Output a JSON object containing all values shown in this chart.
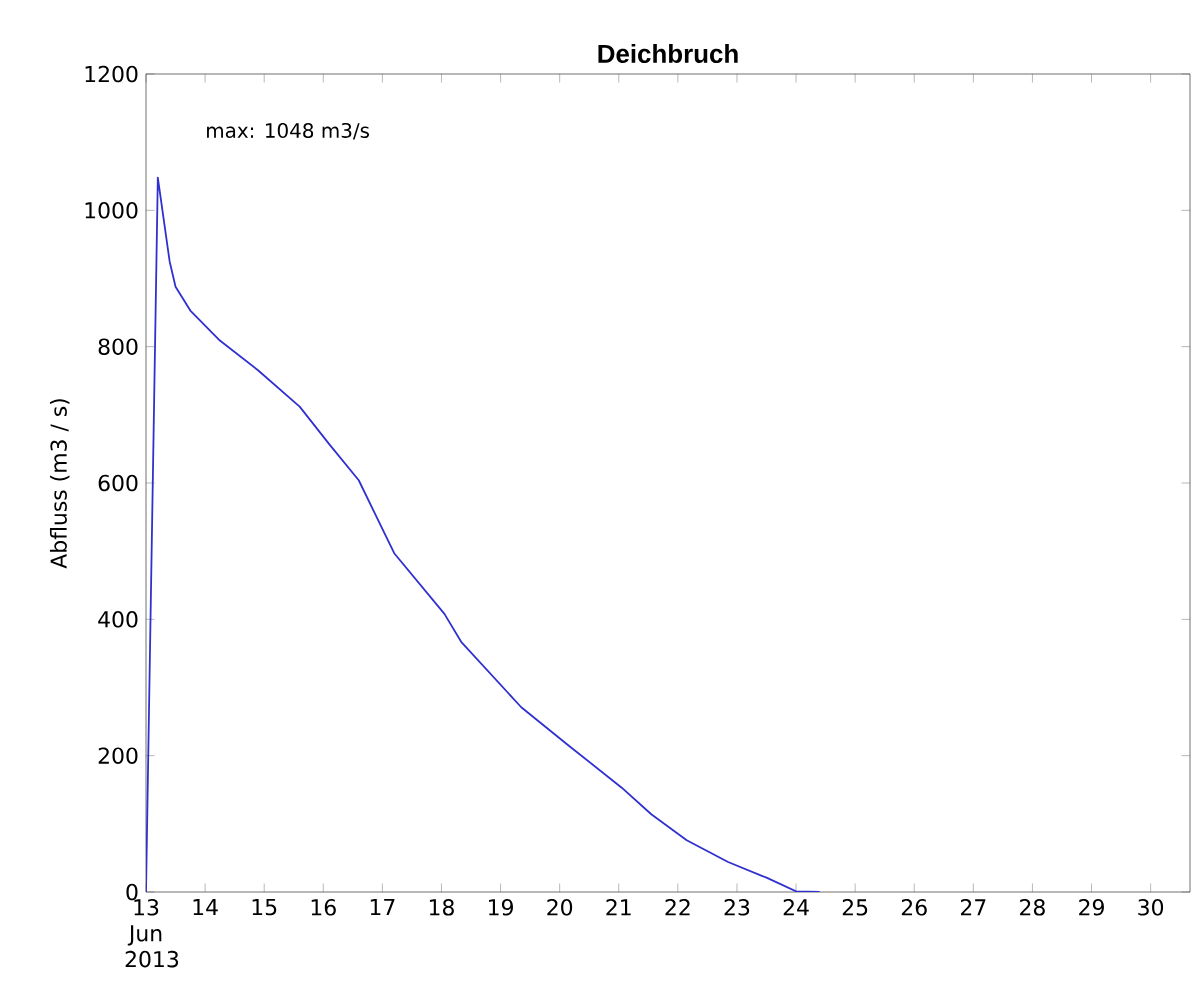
{
  "chart_data": {
    "type": "line",
    "title": "Deichbruch",
    "ylabel": "Abfluss (m3 / s)",
    "annotations": [
      "max: 1048 m3/s"
    ],
    "x": [
      "2013-06-13T00:00",
      "2013-06-13T04:48",
      "2013-06-13T09:36",
      "2013-06-13T12:00",
      "2013-06-13T18:00",
      "2013-06-14T06:00",
      "2013-06-14T21:36",
      "2013-06-15T14:24",
      "2013-06-16T02:24",
      "2013-06-16T14:24",
      "2013-06-17T04:48",
      "2013-06-18T01:12",
      "2013-06-18T08:00",
      "2013-06-19T08:24",
      "2013-06-20T03:36",
      "2013-06-21T01:12",
      "2013-06-21T13:12",
      "2013-06-22T03:36",
      "2013-06-22T20:24",
      "2013-06-23T12:00",
      "2013-06-24T00:00",
      "2013-06-24T09:36"
    ],
    "series": [
      {
        "color": "#3030d0",
        "values": [
          0,
          1048,
          925,
          888,
          853,
          809,
          765,
          712,
          657,
          604,
          497,
          408,
          367,
          271,
          215,
          153,
          114,
          76,
          44,
          21,
          1,
          0
        ]
      }
    ],
    "xlim": [
      "2013-06-13T00:00",
      "2013-06-30T16:00"
    ],
    "xticks": [
      {
        "value": "2013-06-13",
        "label": "13 Jun 2013"
      },
      {
        "value": "2013-06-14",
        "label": "14"
      },
      {
        "value": "2013-06-15",
        "label": "15"
      },
      {
        "value": "2013-06-16",
        "label": "16"
      },
      {
        "value": "2013-06-17",
        "label": "17"
      },
      {
        "value": "2013-06-18",
        "label": "18"
      },
      {
        "value": "2013-06-19",
        "label": "19"
      },
      {
        "value": "2013-06-20",
        "label": "20"
      },
      {
        "value": "2013-06-21",
        "label": "21"
      },
      {
        "value": "2013-06-22",
        "label": "22"
      },
      {
        "value": "2013-06-23",
        "label": "23"
      },
      {
        "value": "2013-06-24",
        "label": "24"
      },
      {
        "value": "2013-06-25",
        "label": "25"
      },
      {
        "value": "2013-06-26",
        "label": "26"
      },
      {
        "value": "2013-06-27",
        "label": "27"
      },
      {
        "value": "2013-06-28",
        "label": "28"
      },
      {
        "value": "2013-06-29",
        "label": "29"
      },
      {
        "value": "2013-06-30",
        "label": "30"
      }
    ],
    "ylim": [
      0,
      1200
    ],
    "yticks": [
      0,
      200,
      400,
      600,
      800,
      1000,
      1200
    ],
    "grid": false,
    "marker": "none",
    "line_style": "solid"
  }
}
